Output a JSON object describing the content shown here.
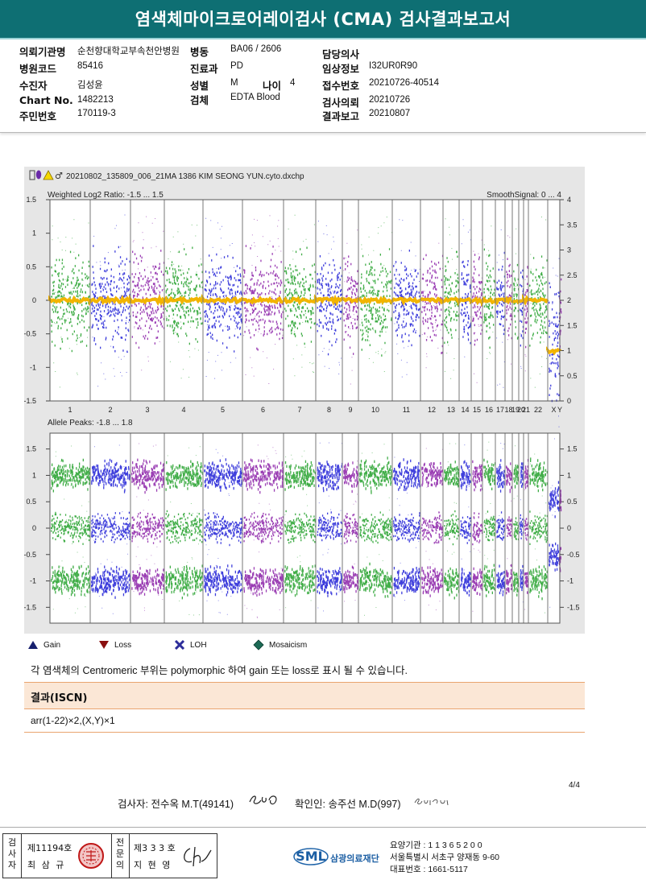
{
  "header": {
    "title": "염색체마이크로어레이검사 (CMA) 검사결과보고서"
  },
  "info": {
    "col1": [
      {
        "label": "의뢰기관명",
        "value": "순천향대학교부속천안병원"
      },
      {
        "label": "병원코드",
        "value": "85416"
      },
      {
        "label": "수진자",
        "value": "김성윤"
      },
      {
        "label": "Chart No.",
        "value": "1482213"
      },
      {
        "label": "주민번호",
        "value": "170119-3"
      }
    ],
    "col2": [
      {
        "label": "병동",
        "value": "BA06 / 2606"
      },
      {
        "label": "진료과",
        "value": "PD"
      },
      {
        "label": "성별",
        "value": "M"
      },
      {
        "label": "검체",
        "value": "EDTA Blood"
      }
    ],
    "age": {
      "label": "나이",
      "value": "4"
    },
    "col3": [
      {
        "label": "담당의사",
        "value": ""
      },
      {
        "label": "임상정보",
        "value": "I32UR0R90"
      },
      {
        "label": "접수번호",
        "value": "20210726-40514"
      },
      {
        "label": "검사의뢰",
        "value": "20210726"
      },
      {
        "label": "결과보고",
        "value": "20210807"
      }
    ]
  },
  "plot": {
    "filename": "20210802_135809_006_21MA 1386 KIM SEONG YUN.cyto.dxchp",
    "top_label_left": "Weighted Log2 Ratio: -1.5 ... 1.5",
    "top_label_right": "SmoothSignal: 0 ... 4",
    "bottom_label_left": "Allele Peaks: -1.8 ... 1.8",
    "top_y_ticks": [
      "1.5",
      "1",
      "0.5",
      "0",
      "-0.5",
      "-1",
      "-1.5"
    ],
    "top_right_ticks": [
      "4",
      "3.5",
      "3",
      "2.5",
      "2",
      "1.5",
      "1",
      "0.5",
      "0"
    ],
    "bottom_y_ticks": [
      "1.5",
      "1",
      "0.5",
      "0",
      "-0.5",
      "-1",
      "-1.5"
    ],
    "bottom_right_ticks": [
      "1.5",
      "1",
      "0.5",
      "0",
      "-0.5",
      "-1",
      "-1.5"
    ],
    "chromosomes": [
      "1",
      "2",
      "3",
      "4",
      "5",
      "6",
      "7",
      "8",
      "9",
      "10",
      "11",
      "12",
      "13",
      "14",
      "15",
      "16",
      "17",
      "18",
      "19",
      "20",
      "21",
      "22",
      "X",
      "Y"
    ],
    "colors": {
      "green": "#22a02a",
      "blue": "#1f1fd6",
      "purple": "#8a1fa8",
      "smooth": "#f2b400",
      "bg": "#e6e6e6",
      "plotbg": "#ffffff"
    }
  },
  "legend": {
    "gain": "Gain",
    "loss": "Loss",
    "loh": "LOH",
    "mosaicism": "Mosaicism"
  },
  "note": "각 염색체의 Centromeric 부위는 polymorphic 하여 gain 또는 loss로 표시 될 수 있습니다.",
  "result": {
    "header": "결과(ISCN)",
    "value": "arr(1-22)×2,(X,Y)×1"
  },
  "page": "4/4",
  "signatures": {
    "tester": "검사자: 전수옥 M.T(49141)",
    "tester_sign": "JSO",
    "confirmer": "확인인: 송주선 M.D(997)",
    "confirmer_sign": "Song Ju Sun"
  },
  "footer": {
    "left_label": "검사자",
    "license1": "제11194호",
    "name1": "최 삼 규",
    "mid_label": "전문의",
    "license2": "제3 3 3 호",
    "name2": "지 현 영",
    "org_short": "SML",
    "org_name": "삼광의료재단",
    "line1": "요양기관 : 1 1 3 6 5 2 0 0",
    "line2": "서울특별시 서초구 양재동 9-60",
    "line3": "대표번호 : 1661-5117"
  }
}
